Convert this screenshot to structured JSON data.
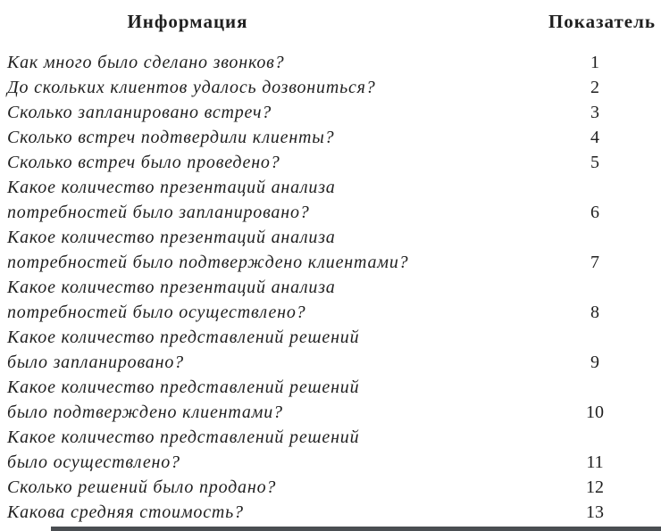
{
  "page": {
    "header": {
      "info_label": "Информация",
      "indicator_label": "Показатель"
    },
    "rows": [
      {
        "lines": [
          "Как много было сделано звонков?"
        ],
        "value": "1"
      },
      {
        "lines": [
          "До скольких клиентов удалось дозвониться?"
        ],
        "value": "2"
      },
      {
        "lines": [
          "Сколько запланировано встреч?"
        ],
        "value": "3"
      },
      {
        "lines": [
          "Сколько встреч подтвердили клиенты?"
        ],
        "value": "4"
      },
      {
        "lines": [
          "Сколько встреч было проведено?"
        ],
        "value": "5"
      },
      {
        "lines": [
          "Какое количество презентаций анализа",
          "потребностей было запланировано?"
        ],
        "value": "6"
      },
      {
        "lines": [
          "Какое количество презентаций анализа",
          "потребностей было подтверждено клиентами?"
        ],
        "value": "7"
      },
      {
        "lines": [
          "Какое количество презентаций анализа",
          "потребностей было осуществлено?"
        ],
        "value": "8"
      },
      {
        "lines": [
          "Какое количество представлений решений",
          "было запланировано?"
        ],
        "value": "9"
      },
      {
        "lines": [
          "Какое количество представлений решений",
          "было подтверждено клиентами?"
        ],
        "value": "10"
      },
      {
        "lines": [
          "Какое количество представлений решений",
          "было осуществлено?"
        ],
        "value": "11"
      },
      {
        "lines": [
          "Сколько решений было продано?"
        ],
        "value": "12"
      },
      {
        "lines": [
          "Какова средняя стоимость?"
        ],
        "value": "13"
      }
    ],
    "colors": {
      "text": "#1f1f1f",
      "background": "#ffffff",
      "partial_rule": "#4a4e52"
    }
  }
}
